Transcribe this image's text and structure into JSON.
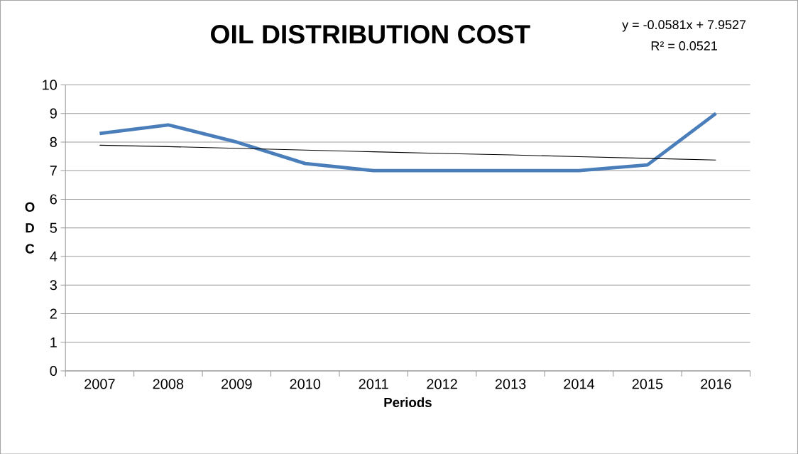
{
  "chart_data": {
    "type": "line",
    "title": "OIL DISTRIBUTION COST",
    "xlabel": "Periods",
    "ylabel": "O D C",
    "categories": [
      "2007",
      "2008",
      "2009",
      "2010",
      "2011",
      "2012",
      "2013",
      "2014",
      "2015",
      "2016"
    ],
    "series": [
      {
        "color": "#4a7ebb",
        "values": [
          8.3,
          8.6,
          8.0,
          7.25,
          7.0,
          7.0,
          7.0,
          7.0,
          7.2,
          9.0
        ]
      },
      {
        "type": "line",
        "color": "#000000",
        "values": [
          7.89,
          7.84,
          7.78,
          7.72,
          7.66,
          7.6,
          7.55,
          7.49,
          7.43,
          7.37
        ]
      }
    ],
    "ylim": [
      0,
      10
    ],
    "yticks": [
      0,
      1,
      2,
      3,
      4,
      5,
      6,
      7,
      8,
      9,
      10
    ],
    "grid": "y",
    "annotations": [
      "y = -0.0581x + 7.9527",
      "R² = 0.0521"
    ]
  }
}
